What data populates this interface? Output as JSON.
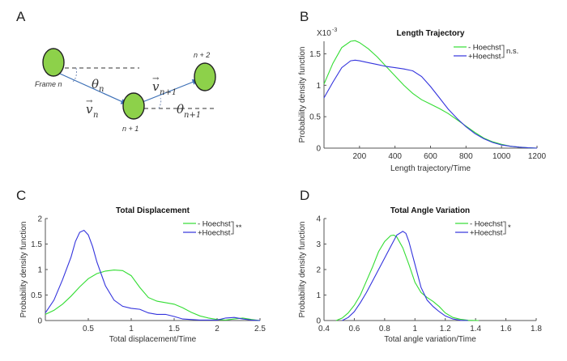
{
  "diagram": {
    "letter": "A",
    "frame_label": "Frame n",
    "n1_label": "n + 1",
    "n2_label": "n + 2",
    "theta_n": "θ",
    "theta_n_sub": "n",
    "theta_n1": "θ",
    "theta_n1_sub": "n+1",
    "v_n": "v",
    "v_n_sub": "n",
    "v_n1": "v",
    "v_n1_sub": "n+1",
    "vector_arrow": "→",
    "cell_color": "#8dd14a",
    "arrow_color": "#3b6fb6"
  },
  "chart_data": [
    {
      "id": "B",
      "letter": "B",
      "type": "line",
      "title": "Length Trajectory",
      "xlabel": "Length trajectory/Time",
      "ylabel": "Probability density function",
      "scale_note": "X10",
      "scale_exp": "-3",
      "xlim": [
        0,
        1200
      ],
      "ylim": [
        0,
        1.7
      ],
      "xticks": [
        200,
        400,
        600,
        800,
        1000,
        1200
      ],
      "yticks": [
        0,
        0.5,
        1,
        1.5
      ],
      "ytick_labels": [
        "0",
        "0.5",
        "1",
        "1.5"
      ],
      "significance": "n.s.",
      "series": [
        {
          "name": "- Hoechst",
          "color": "#33dd33",
          "x": [
            0,
            50,
            100,
            150,
            175,
            200,
            250,
            300,
            350,
            400,
            450,
            500,
            550,
            600,
            650,
            700,
            750,
            800,
            850,
            900,
            950,
            1000,
            1050,
            1100,
            1150,
            1200
          ],
          "y": [
            1.02,
            1.35,
            1.6,
            1.7,
            1.71,
            1.68,
            1.58,
            1.45,
            1.3,
            1.15,
            1.0,
            0.87,
            0.77,
            0.7,
            0.63,
            0.55,
            0.45,
            0.35,
            0.25,
            0.16,
            0.1,
            0.06,
            0.03,
            0.015,
            0.005,
            0.0
          ]
        },
        {
          "name": "+Hoechst",
          "color": "#3333dd",
          "x": [
            0,
            50,
            100,
            150,
            175,
            200,
            250,
            300,
            350,
            400,
            450,
            500,
            550,
            600,
            650,
            700,
            750,
            800,
            850,
            900,
            950,
            1000,
            1050,
            1100,
            1150,
            1200
          ],
          "y": [
            0.8,
            1.05,
            1.28,
            1.39,
            1.4,
            1.39,
            1.36,
            1.33,
            1.3,
            1.28,
            1.26,
            1.23,
            1.14,
            0.98,
            0.8,
            0.62,
            0.47,
            0.34,
            0.23,
            0.15,
            0.09,
            0.05,
            0.03,
            0.015,
            0.005,
            0.0
          ]
        }
      ]
    },
    {
      "id": "C",
      "letter": "C",
      "type": "line",
      "title": "Total Displacement",
      "xlabel": "Total displacement/Time",
      "ylabel": "Probability density function",
      "xlim": [
        0,
        2.5
      ],
      "ylim": [
        0,
        2
      ],
      "xticks": [
        0.5,
        1,
        1.5,
        2,
        2.5
      ],
      "xtick_labels": [
        "0.5",
        "1",
        "1.5",
        "2",
        "2.5"
      ],
      "yticks": [
        0,
        0.5,
        1,
        1.5,
        2
      ],
      "ytick_labels": [
        "0",
        "0.5",
        "1",
        "1.5",
        "2"
      ],
      "significance": "**",
      "series": [
        {
          "name": "- Hoechst",
          "color": "#33dd33",
          "x": [
            0,
            0.1,
            0.2,
            0.3,
            0.4,
            0.5,
            0.6,
            0.7,
            0.8,
            0.9,
            1.0,
            1.1,
            1.2,
            1.3,
            1.4,
            1.5,
            1.6,
            1.7,
            1.8,
            1.9,
            2.0,
            2.1,
            2.2,
            2.3,
            2.4,
            2.5
          ],
          "y": [
            0.12,
            0.2,
            0.32,
            0.48,
            0.66,
            0.82,
            0.92,
            0.97,
            0.99,
            0.98,
            0.88,
            0.65,
            0.45,
            0.38,
            0.35,
            0.32,
            0.25,
            0.16,
            0.09,
            0.05,
            0.02,
            0.01,
            0.03,
            0.05,
            0.02,
            0.0
          ]
        },
        {
          "name": "+Hoechst",
          "color": "#3333dd",
          "x": [
            0,
            0.1,
            0.2,
            0.3,
            0.35,
            0.4,
            0.45,
            0.5,
            0.55,
            0.6,
            0.7,
            0.8,
            0.9,
            1.0,
            1.1,
            1.2,
            1.3,
            1.4,
            1.5,
            1.6,
            1.8,
            2.0,
            2.1,
            2.2,
            2.3,
            2.4,
            2.5
          ],
          "y": [
            0.15,
            0.4,
            0.8,
            1.25,
            1.55,
            1.73,
            1.77,
            1.68,
            1.45,
            1.15,
            0.68,
            0.4,
            0.28,
            0.24,
            0.22,
            0.15,
            0.12,
            0.12,
            0.08,
            0.03,
            0.01,
            0.01,
            0.05,
            0.06,
            0.03,
            0.01,
            0.0
          ]
        }
      ]
    },
    {
      "id": "D",
      "letter": "D",
      "type": "line",
      "title": "Total Angle Variation",
      "xlabel": "Total angle variation/Time",
      "ylabel": "Probability density function",
      "xlim": [
        0.4,
        1.8
      ],
      "ylim": [
        0,
        4
      ],
      "xticks": [
        0.4,
        0.6,
        0.8,
        1,
        1.2,
        1.4,
        1.6,
        1.8
      ],
      "xtick_labels": [
        "0.4",
        "0.6",
        "0.8",
        "1",
        "1.2",
        "1.4",
        "1.6",
        "1.8"
      ],
      "yticks": [
        0,
        1,
        2,
        3,
        4
      ],
      "ytick_labels": [
        "0",
        "1",
        "2",
        "3",
        "4"
      ],
      "significance": "*",
      "series": [
        {
          "name": "- Hoechst",
          "color": "#33dd33",
          "x": [
            0.48,
            0.52,
            0.56,
            0.6,
            0.64,
            0.68,
            0.72,
            0.76,
            0.8,
            0.84,
            0.86,
            0.88,
            0.92,
            0.96,
            1.0,
            1.04,
            1.08,
            1.12,
            1.16,
            1.2,
            1.25,
            1.3,
            1.35,
            1.42
          ],
          "y": [
            0.0,
            0.1,
            0.3,
            0.6,
            1.0,
            1.55,
            2.1,
            2.7,
            3.1,
            3.33,
            3.35,
            3.28,
            2.85,
            2.2,
            1.5,
            1.1,
            0.9,
            0.75,
            0.55,
            0.3,
            0.12,
            0.05,
            0.01,
            0.0
          ]
        },
        {
          "name": "+Hoechst",
          "color": "#3333dd",
          "x": [
            0.52,
            0.56,
            0.6,
            0.64,
            0.68,
            0.72,
            0.76,
            0.8,
            0.84,
            0.88,
            0.92,
            0.94,
            0.96,
            1.0,
            1.04,
            1.08,
            1.12,
            1.16,
            1.2,
            1.25,
            1.3,
            1.35
          ],
          "y": [
            0.0,
            0.12,
            0.35,
            0.7,
            1.1,
            1.55,
            2.0,
            2.45,
            2.9,
            3.35,
            3.5,
            3.42,
            3.1,
            2.2,
            1.3,
            0.8,
            0.55,
            0.35,
            0.18,
            0.06,
            0.01,
            0.0
          ]
        }
      ]
    }
  ]
}
